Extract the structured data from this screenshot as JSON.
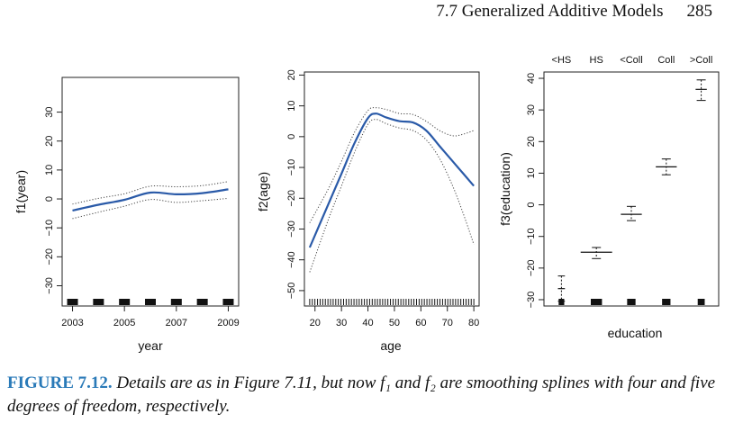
{
  "header": {
    "section_title": "7.7 Generalized Additive Models",
    "page_number": "285"
  },
  "caption": {
    "label": "FIGURE 7.12.",
    "text": "Details are as in Figure 7.11, but now f₁ and f₂ are smoothing splines with four and five degrees of freedom, respectively."
  },
  "colors": {
    "fit": "#2a5aa8",
    "bands": "#444444",
    "caption_label": "#2a7ab8"
  },
  "chart_data": [
    {
      "type": "line",
      "xlabel": "year",
      "ylabel": "f1(year)",
      "xlim": [
        2002.6,
        2009.4
      ],
      "ylim": [
        -37,
        42
      ],
      "x_ticks": [
        2003,
        2005,
        2007,
        2009
      ],
      "y_ticks": [
        -30,
        -20,
        -10,
        0,
        10,
        20,
        30
      ],
      "series": [
        {
          "role": "fit",
          "x": [
            2003,
            2004,
            2005,
            2006,
            2007,
            2008,
            2009
          ],
          "y": [
            -4.0,
            -2.0,
            -0.3,
            2.2,
            1.6,
            2.0,
            3.3
          ]
        },
        {
          "role": "upper",
          "x": [
            2003,
            2004,
            2005,
            2006,
            2007,
            2008,
            2009
          ],
          "y": [
            -1.8,
            0.2,
            1.8,
            4.4,
            4.2,
            4.6,
            6.0
          ]
        },
        {
          "role": "lower",
          "x": [
            2003,
            2004,
            2005,
            2006,
            2007,
            2008,
            2009
          ],
          "y": [
            -6.8,
            -4.6,
            -2.5,
            -0.2,
            -1.2,
            -0.6,
            0.2
          ]
        }
      ],
      "rug": [
        2003,
        2004,
        2005,
        2006,
        2007,
        2008,
        2009
      ]
    },
    {
      "type": "line",
      "xlabel": "age",
      "ylabel": "f2(age)",
      "xlim": [
        16,
        82
      ],
      "ylim": [
        -55,
        21
      ],
      "x_ticks": [
        20,
        30,
        40,
        50,
        60,
        70,
        80
      ],
      "y_ticks": [
        -50,
        -40,
        -30,
        -20,
        -10,
        0,
        10,
        20
      ],
      "series": [
        {
          "role": "fit",
          "x": [
            18,
            25,
            30,
            35,
            40,
            43,
            47,
            52,
            57,
            62,
            67,
            72,
            76,
            80
          ],
          "y": [
            -36,
            -22,
            -12,
            -2,
            6,
            7.5,
            6.2,
            5,
            4.6,
            2,
            -3,
            -8,
            -12,
            -16
          ]
        },
        {
          "role": "upper",
          "x": [
            18,
            25,
            30,
            35,
            40,
            43,
            47,
            52,
            57,
            62,
            67,
            72,
            76,
            80
          ],
          "y": [
            -28,
            -17,
            -8,
            1.5,
            8.5,
            9.4,
            8.8,
            7.5,
            7.2,
            5,
            2,
            0.3,
            0.8,
            2
          ]
        },
        {
          "role": "lower",
          "x": [
            18,
            25,
            30,
            35,
            40,
            43,
            47,
            52,
            57,
            62,
            67,
            72,
            76,
            80
          ],
          "y": [
            -44,
            -27,
            -16,
            -5,
            4,
            5.6,
            4.2,
            2.8,
            2,
            -1,
            -7,
            -16,
            -25,
            -35
          ]
        }
      ],
      "rug_from": 18,
      "rug_to": 80,
      "rug_count": 64
    },
    {
      "type": "step",
      "xlabel": "education",
      "ylabel": "f3(education)",
      "xlim": [
        0.5,
        5.5
      ],
      "ylim": [
        -32,
        42
      ],
      "categories": [
        "<HS",
        "HS",
        "<Coll",
        "Coll",
        ">Coll"
      ],
      "y_ticks": [
        -30,
        -20,
        -10,
        0,
        10,
        20,
        30,
        40
      ],
      "values": [
        -26.5,
        -15,
        -3,
        12,
        36.5
      ],
      "upper": [
        -22.5,
        -13.5,
        -0.5,
        14.5,
        39.5
      ],
      "lower": [
        -30.5,
        -17,
        -5,
        9.5,
        33
      ],
      "bar_half_widths": [
        0.1,
        0.45,
        0.3,
        0.3,
        0.16
      ],
      "rug_half_widths": [
        0.08,
        0.16,
        0.12,
        0.12,
        0.1
      ]
    }
  ]
}
